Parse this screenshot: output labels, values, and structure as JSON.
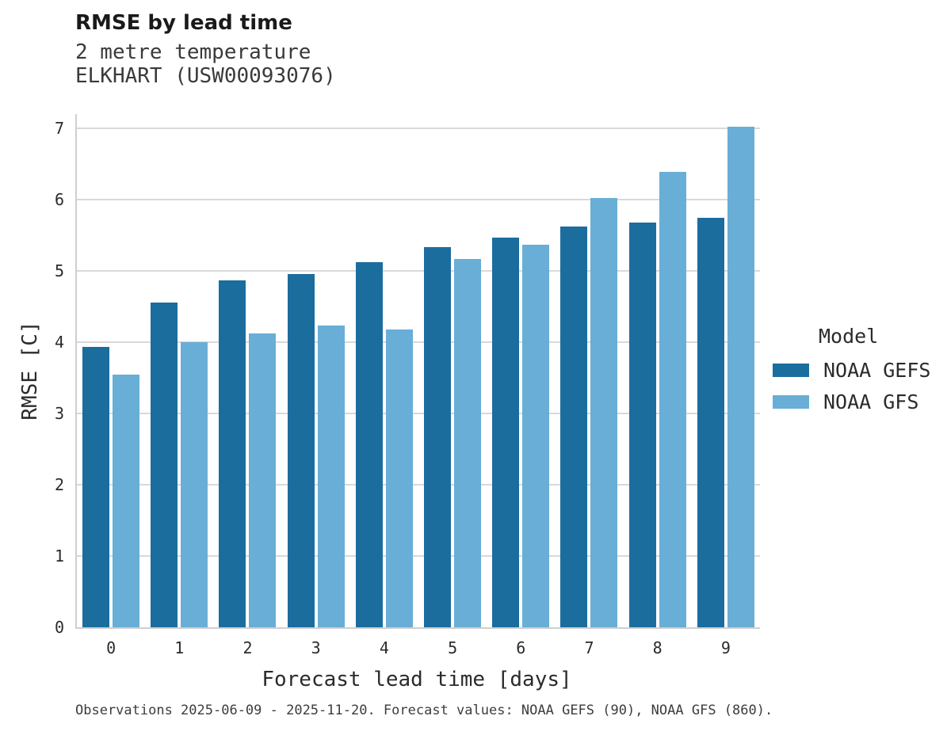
{
  "header": {
    "title": "RMSE by lead time",
    "subtitle_line1": "2 metre temperature",
    "subtitle_line2": "ELKHART (USW00093076)"
  },
  "legend": {
    "title": "Model"
  },
  "footer": {
    "caption": "Observations 2025-06-09 - 2025-11-20. Forecast values: NOAA GEFS (90), NOAA GFS (860)."
  },
  "colors": {
    "gefs_dark_blue": "#1b6d9e",
    "gfs_light_blue": "#69aed6",
    "gridline_gray": "#d9d9d9",
    "spine_gray": "#cfcfcf",
    "text_dark": "#2b2b2b"
  },
  "chart_data": {
    "type": "bar",
    "title": "RMSE by lead time",
    "subtitle": [
      "2 metre temperature",
      "ELKHART (USW00093076)"
    ],
    "categories": [
      "0",
      "1",
      "2",
      "3",
      "4",
      "5",
      "6",
      "7",
      "8",
      "9"
    ],
    "series": [
      {
        "name": "NOAA GEFS",
        "color": "#1b6d9e",
        "values": [
          3.93,
          4.56,
          4.87,
          4.96,
          5.12,
          5.33,
          5.47,
          5.62,
          5.68,
          5.75
        ]
      },
      {
        "name": "NOAA GFS",
        "color": "#69aed6",
        "values": [
          3.54,
          4.0,
          4.12,
          4.23,
          4.18,
          5.17,
          5.37,
          6.02,
          6.39,
          7.02
        ]
      }
    ],
    "xlabel": "Forecast lead time [days]",
    "ylabel": "RMSE [C]",
    "ylim": [
      0,
      7
    ],
    "yticks": [
      0,
      1,
      2,
      3,
      4,
      5,
      6,
      7
    ],
    "grid": true,
    "legend_title": "Model",
    "legend_position": "right"
  }
}
